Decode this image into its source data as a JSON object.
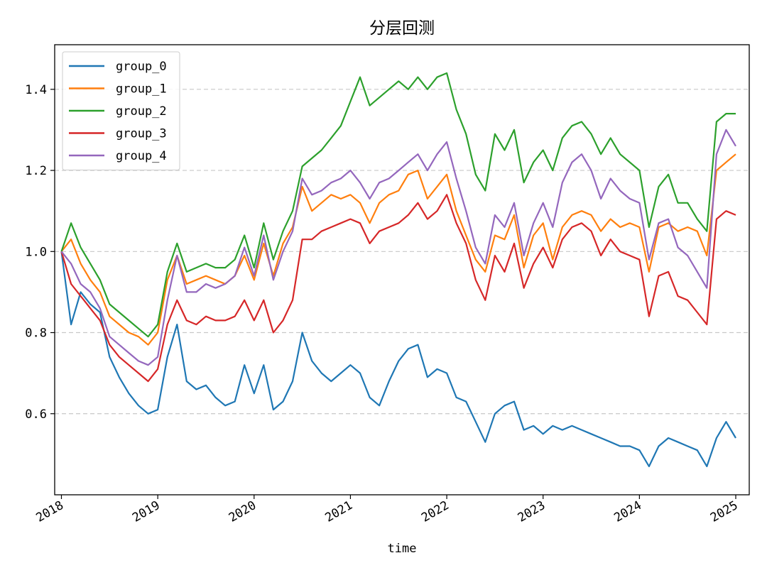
{
  "chart_data": {
    "type": "line",
    "title": "分层回测",
    "xlabel": "time",
    "ylabel": "",
    "x_ticks": [
      "2018",
      "2019",
      "2020",
      "2021",
      "2022",
      "2023",
      "2024",
      "2025"
    ],
    "y_ticks": [
      "0.6",
      "0.8",
      "1.0",
      "1.2",
      "1.4"
    ],
    "xlim": [
      2017.93,
      2025.14
    ],
    "ylim": [
      0.4,
      1.51
    ],
    "grid": "horizontal dashed",
    "legend_position": "top-left",
    "x": [
      2018.0,
      2018.1,
      2018.2,
      2018.3,
      2018.4,
      2018.5,
      2018.6,
      2018.7,
      2018.8,
      2018.9,
      2019.0,
      2019.1,
      2019.2,
      2019.3,
      2019.4,
      2019.5,
      2019.6,
      2019.7,
      2019.8,
      2019.9,
      2020.0,
      2020.1,
      2020.2,
      2020.3,
      2020.4,
      2020.5,
      2020.6,
      2020.7,
      2020.8,
      2020.9,
      2021.0,
      2021.1,
      2021.2,
      2021.3,
      2021.4,
      2021.5,
      2021.6,
      2021.7,
      2021.8,
      2021.9,
      2022.0,
      2022.1,
      2022.2,
      2022.3,
      2022.4,
      2022.5,
      2022.6,
      2022.7,
      2022.8,
      2022.9,
      2023.0,
      2023.1,
      2023.2,
      2023.3,
      2023.4,
      2023.5,
      2023.6,
      2023.7,
      2023.8,
      2023.9,
      2024.0,
      2024.1,
      2024.2,
      2024.3,
      2024.4,
      2024.5,
      2024.6,
      2024.7,
      2024.8,
      2024.9,
      2025.0
    ],
    "series": [
      {
        "name": "group_0",
        "color": "#1f77b4",
        "values": [
          1.0,
          0.82,
          0.9,
          0.87,
          0.85,
          0.74,
          0.69,
          0.65,
          0.62,
          0.6,
          0.61,
          0.74,
          0.82,
          0.68,
          0.66,
          0.67,
          0.64,
          0.62,
          0.63,
          0.72,
          0.65,
          0.72,
          0.61,
          0.63,
          0.68,
          0.8,
          0.73,
          0.7,
          0.68,
          0.7,
          0.72,
          0.7,
          0.64,
          0.62,
          0.68,
          0.73,
          0.76,
          0.77,
          0.69,
          0.71,
          0.7,
          0.64,
          0.63,
          0.58,
          0.53,
          0.6,
          0.62,
          0.63,
          0.56,
          0.57,
          0.55,
          0.57,
          0.56,
          0.57,
          0.56,
          0.55,
          0.54,
          0.53,
          0.52,
          0.52,
          0.51,
          0.47,
          0.52,
          0.54,
          0.53,
          0.52,
          0.51,
          0.47,
          0.54,
          0.58,
          0.54
        ]
      },
      {
        "name": "group_1",
        "color": "#ff7f0e",
        "values": [
          1.0,
          1.03,
          0.97,
          0.93,
          0.9,
          0.84,
          0.82,
          0.8,
          0.79,
          0.77,
          0.8,
          0.93,
          0.99,
          0.92,
          0.93,
          0.94,
          0.93,
          0.92,
          0.94,
          0.99,
          0.93,
          1.02,
          0.94,
          1.02,
          1.06,
          1.16,
          1.1,
          1.12,
          1.14,
          1.13,
          1.14,
          1.12,
          1.07,
          1.12,
          1.14,
          1.15,
          1.19,
          1.2,
          1.13,
          1.16,
          1.19,
          1.1,
          1.04,
          0.98,
          0.95,
          1.04,
          1.03,
          1.09,
          0.96,
          1.04,
          1.07,
          0.98,
          1.06,
          1.09,
          1.1,
          1.09,
          1.05,
          1.08,
          1.06,
          1.07,
          1.06,
          0.95,
          1.06,
          1.07,
          1.05,
          1.06,
          1.05,
          0.99,
          1.2,
          1.22,
          1.24
        ]
      },
      {
        "name": "group_2",
        "color": "#2ca02c",
        "values": [
          1.0,
          1.07,
          1.01,
          0.97,
          0.93,
          0.87,
          0.85,
          0.83,
          0.81,
          0.79,
          0.82,
          0.95,
          1.02,
          0.95,
          0.96,
          0.97,
          0.96,
          0.96,
          0.98,
          1.04,
          0.96,
          1.07,
          0.98,
          1.05,
          1.1,
          1.21,
          1.23,
          1.25,
          1.28,
          1.31,
          1.37,
          1.43,
          1.36,
          1.38,
          1.4,
          1.42,
          1.4,
          1.43,
          1.4,
          1.43,
          1.44,
          1.35,
          1.29,
          1.19,
          1.15,
          1.29,
          1.25,
          1.3,
          1.17,
          1.22,
          1.25,
          1.2,
          1.28,
          1.31,
          1.32,
          1.29,
          1.24,
          1.28,
          1.24,
          1.22,
          1.2,
          1.06,
          1.16,
          1.19,
          1.12,
          1.12,
          1.08,
          1.05,
          1.32,
          1.34,
          1.34
        ]
      },
      {
        "name": "group_3",
        "color": "#d62728",
        "values": [
          1.0,
          0.92,
          0.89,
          0.86,
          0.83,
          0.77,
          0.74,
          0.72,
          0.7,
          0.68,
          0.71,
          0.82,
          0.88,
          0.83,
          0.82,
          0.84,
          0.83,
          0.83,
          0.84,
          0.88,
          0.83,
          0.88,
          0.8,
          0.83,
          0.88,
          1.03,
          1.03,
          1.05,
          1.06,
          1.07,
          1.08,
          1.07,
          1.02,
          1.05,
          1.06,
          1.07,
          1.09,
          1.12,
          1.08,
          1.1,
          1.14,
          1.07,
          1.02,
          0.93,
          0.88,
          0.99,
          0.95,
          1.02,
          0.91,
          0.97,
          1.01,
          0.96,
          1.03,
          1.06,
          1.07,
          1.05,
          0.99,
          1.03,
          1.0,
          0.99,
          0.98,
          0.84,
          0.94,
          0.95,
          0.89,
          0.88,
          0.85,
          0.82,
          1.08,
          1.1,
          1.09
        ]
      },
      {
        "name": "group_4",
        "color": "#9467bd",
        "values": [
          1.0,
          0.97,
          0.92,
          0.9,
          0.86,
          0.79,
          0.77,
          0.75,
          0.73,
          0.72,
          0.74,
          0.88,
          0.99,
          0.9,
          0.9,
          0.92,
          0.91,
          0.92,
          0.94,
          1.01,
          0.94,
          1.04,
          0.93,
          1.0,
          1.05,
          1.18,
          1.14,
          1.15,
          1.17,
          1.18,
          1.2,
          1.17,
          1.13,
          1.17,
          1.18,
          1.2,
          1.22,
          1.24,
          1.2,
          1.24,
          1.27,
          1.18,
          1.1,
          1.01,
          0.97,
          1.09,
          1.06,
          1.12,
          0.99,
          1.07,
          1.12,
          1.06,
          1.17,
          1.22,
          1.24,
          1.2,
          1.13,
          1.18,
          1.15,
          1.13,
          1.12,
          0.98,
          1.07,
          1.08,
          1.01,
          0.99,
          0.95,
          0.91,
          1.24,
          1.3,
          1.26
        ]
      }
    ]
  }
}
